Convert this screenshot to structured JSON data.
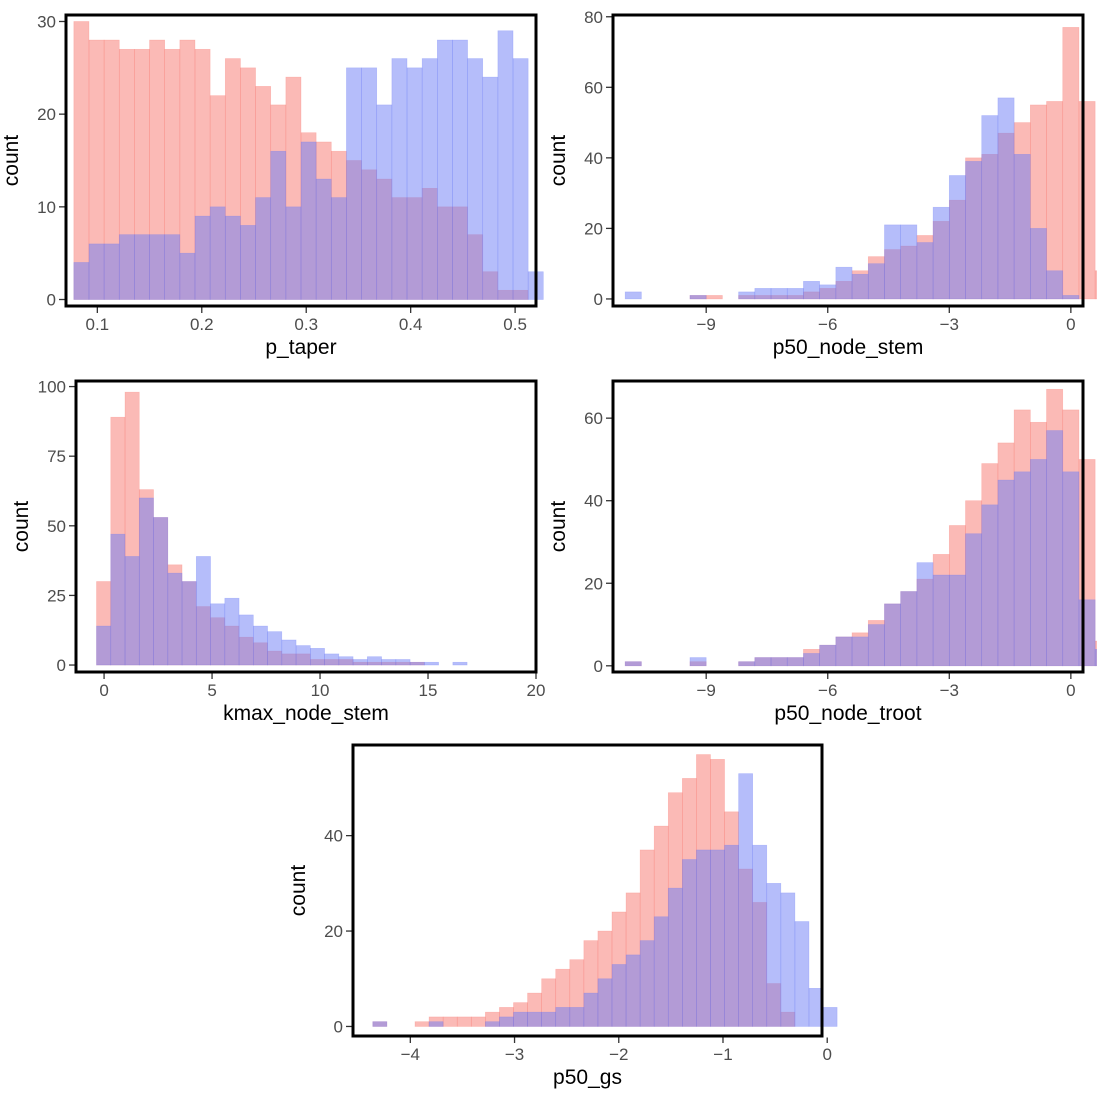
{
  "colors": {
    "series_a": "#f8766d",
    "series_b": "#6b7cf5",
    "fill_opacity": 0.5,
    "frame": "#000000",
    "tick_text": "#4d4d4d"
  },
  "chart_data": [
    {
      "type": "bar",
      "subtype": "overlaid-histogram",
      "xlabel": "p_taper",
      "ylabel": "count",
      "xlim": [
        0.07,
        0.52
      ],
      "ylim": [
        -0.7,
        30.7
      ],
      "xticks": [
        0.1,
        0.2,
        0.3,
        0.4,
        0.5
      ],
      "xtick_labels": [
        "0.1",
        "0.2",
        "0.3",
        "0.4",
        "0.5"
      ],
      "yticks": [
        0,
        10,
        20,
        30
      ],
      "ytick_labels": [
        "0",
        "10",
        "20",
        "30"
      ],
      "grid": false,
      "legend": "none",
      "bin_start": 0.0775,
      "bin_width": 0.0145,
      "series": [
        {
          "color": "#f8766d",
          "values": [
            30,
            28,
            28,
            27,
            27,
            28,
            27,
            28,
            27,
            22,
            26,
            25,
            23,
            21,
            24,
            18,
            17,
            16,
            15,
            14,
            13,
            11,
            11,
            12,
            10,
            10,
            7,
            3,
            1,
            1
          ]
        },
        {
          "color": "#6b7cf5",
          "values": [
            4,
            6,
            6,
            7,
            7,
            7,
            7,
            5,
            9,
            10,
            9,
            8,
            11,
            16,
            10,
            17,
            13,
            11,
            25,
            25,
            21,
            26,
            25,
            26,
            28,
            28,
            26,
            24,
            29,
            26,
            3
          ]
        }
      ]
    },
    {
      "type": "bar",
      "subtype": "overlaid-histogram",
      "xlabel": "p50_node_stem",
      "ylabel": "count",
      "xlim": [
        -11.3,
        0.3
      ],
      "ylim": [
        -2,
        80.5
      ],
      "xticks": [
        -9,
        -6,
        -3,
        0
      ],
      "xtick_labels": [
        "−9",
        "−6",
        "−3",
        "0"
      ],
      "yticks": [
        0,
        20,
        40,
        60,
        80
      ],
      "ytick_labels": [
        "0",
        "20",
        "40",
        "60",
        "80"
      ],
      "grid": false,
      "legend": "none",
      "bin_start": -11.0,
      "bin_width": 0.4,
      "series": [
        {
          "color": "#f8766d",
          "values": [
            0,
            0,
            0,
            0,
            1,
            1,
            0,
            1,
            1,
            1,
            1,
            2,
            3,
            5,
            8,
            12,
            14,
            15,
            18,
            22,
            28,
            40,
            41,
            47,
            50,
            55,
            56,
            77,
            56,
            8,
            9
          ]
        },
        {
          "color": "#6b7cf5",
          "values": [
            2,
            0,
            0,
            0,
            1,
            0,
            0,
            2,
            3,
            3,
            3,
            5,
            4,
            9,
            7,
            10,
            21,
            21,
            16,
            26,
            35,
            39,
            52,
            57,
            41,
            20,
            8,
            1
          ]
        }
      ]
    },
    {
      "type": "bar",
      "subtype": "overlaid-histogram",
      "xlabel": "kmax_node_stem",
      "ylabel": "count",
      "xlim": [
        -1.3,
        20.0
      ],
      "ylim": [
        -2.5,
        102
      ],
      "xticks": [
        0,
        5,
        10,
        15,
        20
      ],
      "xtick_labels": [
        "0",
        "5",
        "10",
        "15",
        "20"
      ],
      "yticks": [
        0,
        25,
        50,
        75,
        100
      ],
      "ytick_labels": [
        "0",
        "25",
        "50",
        "75",
        "100"
      ],
      "grid": false,
      "legend": "none",
      "bin_start": -0.35,
      "bin_width": 0.66,
      "series": [
        {
          "color": "#f8766d",
          "values": [
            30,
            89,
            98,
            63,
            53,
            36,
            30,
            21,
            17,
            14,
            10,
            8,
            5,
            4,
            4,
            2,
            2,
            2,
            1,
            1,
            1,
            1,
            1,
            0,
            0,
            0,
            0,
            0,
            0,
            0
          ]
        },
        {
          "color": "#6b7cf5",
          "values": [
            14,
            47,
            39,
            60,
            53,
            33,
            30,
            39,
            22,
            24,
            18,
            14,
            12,
            9,
            7,
            6,
            4,
            3,
            2,
            3,
            2,
            2,
            1,
            1,
            0,
            1,
            0,
            0,
            0,
            0
          ]
        }
      ]
    },
    {
      "type": "bar",
      "subtype": "overlaid-histogram",
      "xlabel": "p50_node_troot",
      "ylabel": "count",
      "xlim": [
        -11.3,
        0.3
      ],
      "ylim": [
        -1.5,
        69
      ],
      "xticks": [
        -9,
        -6,
        -3,
        0
      ],
      "xtick_labels": [
        "−9",
        "−6",
        "−3",
        "0"
      ],
      "yticks": [
        0,
        20,
        40,
        60
      ],
      "ytick_labels": [
        "0",
        "20",
        "40",
        "60"
      ],
      "grid": false,
      "legend": "none",
      "bin_start": -11.0,
      "bin_width": 0.4,
      "series": [
        {
          "color": "#f8766d",
          "values": [
            1,
            0,
            0,
            0,
            1,
            0,
            0,
            1,
            2,
            2,
            2,
            4,
            5,
            7,
            8,
            11,
            15,
            18,
            21,
            27,
            34,
            40,
            49,
            54,
            62,
            59,
            67,
            62,
            50,
            6,
            6
          ]
        },
        {
          "color": "#6b7cf5",
          "values": [
            1,
            0,
            0,
            0,
            2,
            0,
            0,
            1,
            2,
            2,
            2,
            3,
            5,
            7,
            7,
            10,
            15,
            18,
            25,
            22,
            22,
            32,
            39,
            45,
            47,
            50,
            57,
            47,
            16,
            4
          ]
        }
      ]
    },
    {
      "type": "bar",
      "subtype": "overlaid-histogram",
      "xlabel": "p50_gs",
      "ylabel": "count",
      "xlim": [
        -4.55,
        -0.05
      ],
      "ylim": [
        -2,
        59
      ],
      "xticks": [
        -4,
        -3,
        -2,
        -1,
        0
      ],
      "xtick_labels": [
        "−4",
        "−3",
        "−2",
        "−1",
        "0"
      ],
      "yticks": [
        0,
        20,
        40
      ],
      "ytick_labels": [
        "0",
        "20",
        "40"
      ],
      "grid": false,
      "legend": "none",
      "bin_start": -4.36,
      "bin_width": 0.135,
      "series": [
        {
          "color": "#f8766d",
          "values": [
            1,
            0,
            0,
            1,
            2,
            2,
            2,
            2,
            3,
            4,
            5,
            7,
            10,
            12,
            14,
            18,
            20,
            24,
            28,
            37,
            42,
            49,
            52,
            57,
            56,
            45,
            33,
            26,
            9,
            3
          ]
        },
        {
          "color": "#6b7cf5",
          "values": [
            1,
            0,
            0,
            0,
            1,
            0,
            0,
            0,
            1,
            2,
            3,
            3,
            3,
            4,
            4,
            7,
            10,
            13,
            15,
            18,
            23,
            29,
            35,
            37,
            37,
            38,
            53,
            38,
            30,
            28,
            22,
            8,
            4
          ]
        }
      ]
    }
  ]
}
